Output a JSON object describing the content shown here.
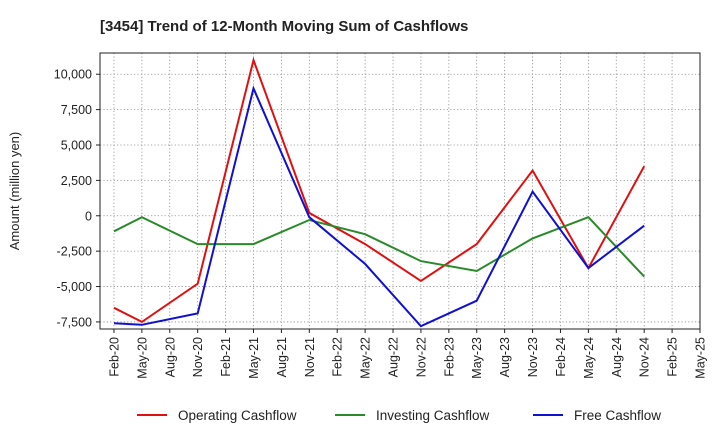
{
  "chart_data": {
    "type": "line",
    "title": "[3454]  Trend of 12-Month Moving Sum of Cashflows",
    "xlabel": "",
    "ylabel": "Amount (million yen)",
    "categories": [
      "Feb-20",
      "May-20",
      "Aug-20",
      "Nov-20",
      "Feb-21",
      "May-21",
      "Aug-21",
      "Nov-21",
      "Feb-22",
      "May-22",
      "Aug-22",
      "Nov-22",
      "Feb-23",
      "May-23",
      "Aug-23",
      "Nov-23",
      "Feb-24",
      "May-24",
      "Aug-24",
      "Nov-24",
      "Feb-25",
      "May-25"
    ],
    "ylim": [
      -8000,
      11500
    ],
    "yticks": [
      -7500,
      -5000,
      -2500,
      0,
      2500,
      5000,
      7500,
      10000
    ],
    "ytick_labels": [
      "-7,500",
      "-5,000",
      "-2,500",
      "0",
      "2,500",
      "5,000",
      "7,500",
      "10,000"
    ],
    "grid": true,
    "legend_position": "bottom",
    "series": [
      {
        "name": "Operating Cashflow",
        "color": "#e01010",
        "points": [
          [
            0,
            -6500
          ],
          [
            1,
            -7500
          ],
          [
            3,
            -4800
          ],
          [
            5,
            11000
          ],
          [
            7,
            200
          ],
          [
            9,
            -2000
          ],
          [
            11,
            -4600
          ],
          [
            13,
            -2000
          ],
          [
            15,
            3200
          ],
          [
            17,
            -3700
          ],
          [
            19,
            3500
          ]
        ]
      },
      {
        "name": "Investing Cashflow",
        "color": "#2a8a2a",
        "points": [
          [
            0,
            -1100
          ],
          [
            1,
            -100
          ],
          [
            3,
            -2000
          ],
          [
            5,
            -2000
          ],
          [
            7,
            -300
          ],
          [
            9,
            -1300
          ],
          [
            11,
            -3200
          ],
          [
            13,
            -3900
          ],
          [
            15,
            -1600
          ],
          [
            17,
            -100
          ],
          [
            19,
            -4300
          ]
        ]
      },
      {
        "name": "Free Cashflow",
        "color": "#1010d0",
        "points": [
          [
            0,
            -7600
          ],
          [
            1,
            -7700
          ],
          [
            3,
            -6900
          ],
          [
            5,
            9000
          ],
          [
            7,
            -100
          ],
          [
            9,
            -3400
          ],
          [
            11,
            -7800
          ],
          [
            13,
            -6000
          ],
          [
            15,
            1700
          ],
          [
            17,
            -3700
          ],
          [
            19,
            -700
          ]
        ]
      }
    ]
  }
}
